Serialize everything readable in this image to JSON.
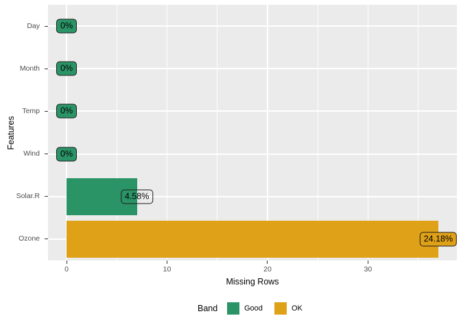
{
  "chart_data": {
    "type": "bar",
    "orientation": "horizontal",
    "title": "",
    "xlabel": "Missing Rows",
    "ylabel": "Features",
    "xlim": [
      -1.85,
      38.85
    ],
    "x_major_ticks": [
      0,
      10,
      20,
      30
    ],
    "x_minor_ticks": [
      5,
      15,
      25,
      35
    ],
    "grid": "on",
    "rows": [
      {
        "feature": "Day",
        "missing_rows": 0,
        "pct_label": "0%",
        "band": "Good",
        "label_fill": "band"
      },
      {
        "feature": "Month",
        "missing_rows": 0,
        "pct_label": "0%",
        "band": "Good",
        "label_fill": "band"
      },
      {
        "feature": "Temp",
        "missing_rows": 0,
        "pct_label": "0%",
        "band": "Good",
        "label_fill": "band"
      },
      {
        "feature": "Wind",
        "missing_rows": 0,
        "pct_label": "0%",
        "band": "Good",
        "label_fill": "band"
      },
      {
        "feature": "Solar.R",
        "missing_rows": 7,
        "pct_label": "4.58%",
        "band": "Good",
        "label_fill": "transparent"
      },
      {
        "feature": "Ozone",
        "missing_rows": 37,
        "pct_label": "24.18%",
        "band": "OK",
        "label_fill": "band"
      }
    ],
    "band_colors": {
      "Good": "#2b9467",
      "OK": "#dfa118"
    },
    "legend": {
      "title": "Band",
      "position": "bottom",
      "entries": [
        {
          "label": "Good",
          "color": "#2b9467"
        },
        {
          "label": "OK",
          "color": "#dfa118"
        }
      ]
    },
    "style": {
      "panel_bg": "#ebebeb",
      "grid_color": "#ffffff",
      "tick_color": "#333333",
      "axis_text_color": "#4d4d4d",
      "title_color": "#000000",
      "label_border": "#1a1a1a",
      "label_text": "#000000"
    }
  }
}
